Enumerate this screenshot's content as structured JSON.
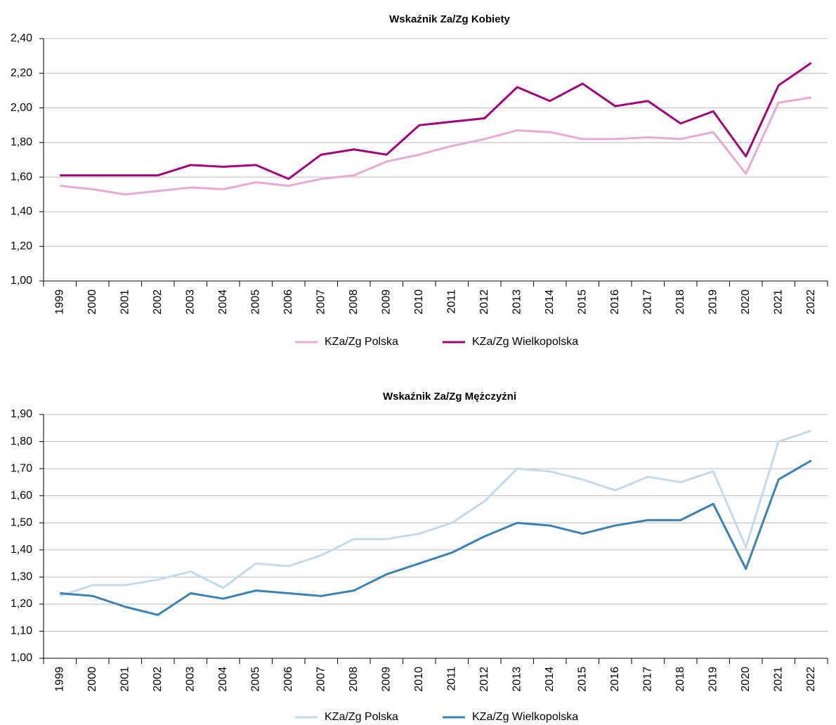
{
  "chart_data": [
    {
      "type": "line",
      "title": "Wskaźnik Za/Zg Kobiety",
      "categories": [
        "1999",
        "2000",
        "2001",
        "2002",
        "2003",
        "2004",
        "2005",
        "2006",
        "2007",
        "2008",
        "2009",
        "2010",
        "2011",
        "2012",
        "2013",
        "2014",
        "2015",
        "2016",
        "2017",
        "2018",
        "2019",
        "2020",
        "2021",
        "2022"
      ],
      "series": [
        {
          "name": "KZa/Zg Polska",
          "color": "#e8a9d4",
          "values": [
            1.55,
            1.53,
            1.5,
            1.52,
            1.54,
            1.53,
            1.57,
            1.55,
            1.59,
            1.61,
            1.69,
            1.73,
            1.78,
            1.82,
            1.87,
            1.86,
            1.82,
            1.82,
            1.83,
            1.82,
            1.86,
            1.62,
            2.03,
            2.06
          ]
        },
        {
          "name": "KZa/Zg Wielkopolska",
          "color": "#a0067a",
          "values": [
            1.61,
            1.61,
            1.61,
            1.61,
            1.67,
            1.66,
            1.67,
            1.59,
            1.73,
            1.76,
            1.73,
            1.9,
            1.92,
            1.94,
            2.12,
            2.04,
            2.14,
            2.01,
            2.04,
            1.91,
            1.98,
            1.72,
            2.13,
            2.26
          ]
        }
      ],
      "ylim": [
        1.0,
        2.4
      ],
      "yticks": [
        {
          "value": 1.0,
          "label": "1,00"
        },
        {
          "value": 1.2,
          "label": "1,20"
        },
        {
          "value": 1.4,
          "label": "1,40"
        },
        {
          "value": 1.6,
          "label": "1,60"
        },
        {
          "value": 1.8,
          "label": "1,80"
        },
        {
          "value": 2.0,
          "label": "2,00"
        },
        {
          "value": 2.2,
          "label": "2,20"
        },
        {
          "value": 2.4,
          "label": "2,40"
        }
      ],
      "grid": true,
      "legend": "bottom"
    },
    {
      "type": "line",
      "title": "Wskaźnik Za/Zg Mężczyźni",
      "categories": [
        "1999",
        "2000",
        "2001",
        "2002",
        "2003",
        "2004",
        "2005",
        "2006",
        "2007",
        "2008",
        "2009",
        "2010",
        "2011",
        "2012",
        "2013",
        "2014",
        "2015",
        "2016",
        "2017",
        "2018",
        "2019",
        "2020",
        "2021",
        "2022"
      ],
      "series": [
        {
          "name": "KZa/Zg Polska",
          "color": "#c5dbe9",
          "values": [
            1.23,
            1.27,
            1.27,
            1.29,
            1.32,
            1.26,
            1.35,
            1.34,
            1.38,
            1.44,
            1.44,
            1.46,
            1.5,
            1.58,
            1.7,
            1.69,
            1.66,
            1.62,
            1.67,
            1.65,
            1.69,
            1.41,
            1.8,
            1.84
          ]
        },
        {
          "name": "KZa/Zg Wielkopolska",
          "color": "#3a82b4",
          "values": [
            1.24,
            1.23,
            1.19,
            1.16,
            1.24,
            1.22,
            1.25,
            1.24,
            1.23,
            1.25,
            1.31,
            1.35,
            1.39,
            1.45,
            1.5,
            1.49,
            1.46,
            1.49,
            1.51,
            1.51,
            1.57,
            1.33,
            1.66,
            1.73
          ]
        }
      ],
      "ylim": [
        1.0,
        1.9
      ],
      "yticks": [
        {
          "value": 1.0,
          "label": "1,00"
        },
        {
          "value": 1.1,
          "label": "1,10"
        },
        {
          "value": 1.2,
          "label": "1,20"
        },
        {
          "value": 1.3,
          "label": "1,30"
        },
        {
          "value": 1.4,
          "label": "1,40"
        },
        {
          "value": 1.5,
          "label": "1,50"
        },
        {
          "value": 1.6,
          "label": "1,60"
        },
        {
          "value": 1.7,
          "label": "1,70"
        },
        {
          "value": 1.8,
          "label": "1,80"
        },
        {
          "value": 1.9,
          "label": "1,90"
        }
      ],
      "grid": true,
      "legend": "bottom"
    }
  ]
}
